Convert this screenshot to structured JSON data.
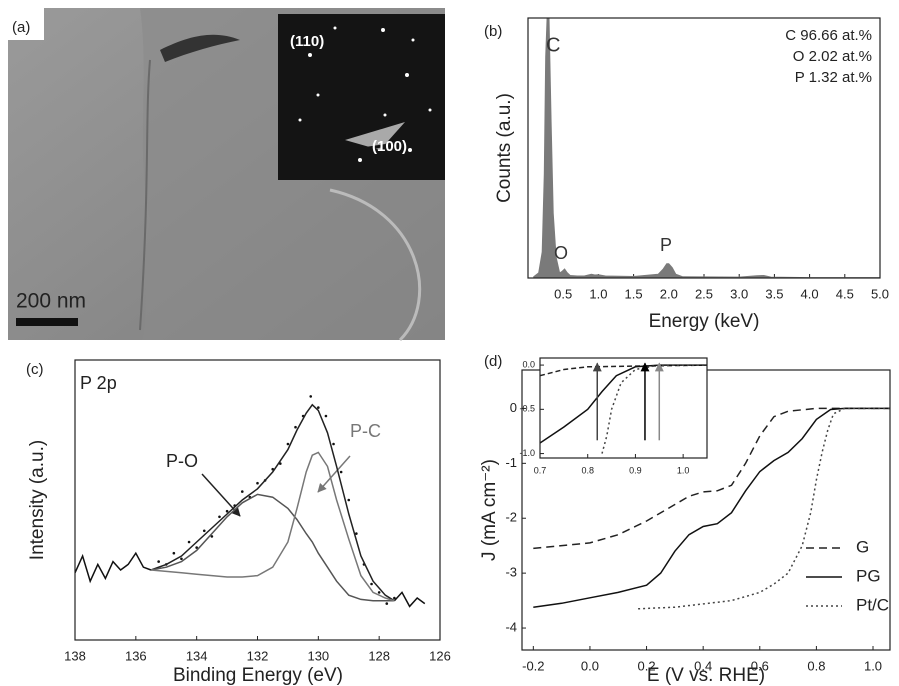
{
  "image_panel": {
    "label": "(a)",
    "scale_bar": "200 nm",
    "diffraction_spots": [
      "(110)",
      "(100)"
    ]
  },
  "chart_data": [
    {
      "type": "area",
      "label": "(b)",
      "xlabel": "Energy (keV)",
      "ylabel": "Counts (a.u.)",
      "xlim": [
        0,
        5
      ],
      "ylim": [
        0,
        100
      ],
      "xticks": [
        0.5,
        {
          "value": 1,
          "label": "1.0"
        },
        1.5,
        {
          "value": 2,
          "label": "2.0"
        },
        2.5,
        {
          "value": 3,
          "label": "3.0"
        },
        3.5,
        {
          "value": 4,
          "label": "4.0"
        },
        4.5,
        {
          "value": 5,
          "label": "5.0"
        }
      ],
      "annotations": [
        "C",
        "O",
        "P",
        "C 96.66 at.%",
        "O 2.02 at.%",
        "P 1.32 at.%"
      ],
      "series": [
        {
          "color": "#7a7a7a",
          "x": [
            0.08,
            0.15,
            0.2,
            0.23,
            0.25,
            0.27,
            0.3,
            0.33,
            0.36,
            0.4,
            0.45,
            0.48,
            0.52,
            0.56,
            0.6,
            0.7,
            0.8,
            0.9,
            0.95,
            1.0,
            1.1,
            1.5,
            1.85,
            1.92,
            1.97,
            2.0,
            2.05,
            2.1,
            2.2,
            3.0,
            3.25,
            3.35,
            3.45,
            4.0,
            5.0
          ],
          "values": [
            0.5,
            2,
            10,
            40,
            85,
            100,
            100,
            60,
            25,
            8,
            2,
            2.5,
            3.5,
            2,
            1,
            0.8,
            0.8,
            1.5,
            1.2,
            1.3,
            0.8,
            0.6,
            1.5,
            3.5,
            5.5,
            5.5,
            4,
            1.5,
            0.5,
            0.4,
            0.9,
            1,
            0.4,
            0.2,
            0.2
          ]
        }
      ]
    },
    {
      "type": "line",
      "label": "(c)",
      "xlabel": "Binding Energy (eV)",
      "ylabel": "Intensity (a.u.)",
      "xlim": [
        138,
        126
      ],
      "ylim": [
        0,
        100
      ],
      "xticks": [
        138,
        136,
        134,
        132,
        130,
        128,
        126
      ],
      "annotations": [
        "P 2p",
        "P-O",
        "P-C"
      ],
      "series": [
        {
          "color": "#111",
          "x": [
            138,
            137.75,
            137.5,
            137.25,
            137,
            136.75,
            136.5,
            136.25,
            136,
            135.75,
            135.5,
            127.6,
            127.5,
            127.25,
            127,
            126.75,
            126.5
          ],
          "values": [
            24,
            30,
            21,
            27,
            22,
            28,
            25,
            27,
            31,
            26,
            25,
            null,
            14,
            17,
            12,
            15,
            13
          ]
        },
        {
          "color": "#111",
          "marker": true,
          "x": [
            135.25,
            135,
            134.75,
            134.5,
            134.25,
            134,
            133.75,
            133.5,
            133.25,
            133,
            132.75,
            132.5,
            132.25,
            132,
            131.75,
            131.5,
            131.25,
            131,
            130.75,
            130.5,
            130.25,
            130,
            129.75,
            129.5,
            129.25,
            129,
            128.75,
            128.5,
            128.25,
            128,
            127.75,
            127.5
          ],
          "values": [
            28,
            27,
            31,
            29,
            35,
            33,
            39,
            37,
            44,
            46,
            48,
            53,
            51,
            56,
            57,
            61,
            63,
            70,
            76,
            80,
            87,
            83,
            80,
            70,
            60,
            50,
            38,
            27,
            20,
            17,
            13,
            15
          ]
        },
        {
          "color": "#222",
          "x": [
            135.5,
            135,
            134.5,
            134,
            133.5,
            133,
            132.5,
            132,
            131.5,
            131,
            130.7,
            130.4,
            130.2,
            130,
            129.7,
            129.4,
            129,
            128.6,
            128.2,
            127.8,
            127.5
          ],
          "values": [
            25,
            27,
            30,
            35,
            40,
            45,
            50,
            54,
            60,
            68,
            75,
            81,
            84,
            82,
            74,
            62,
            45,
            30,
            21,
            16,
            14
          ]
        },
        {
          "color": "#555",
          "x": [
            135.5,
            135,
            134.5,
            134,
            133.5,
            133,
            132.5,
            132,
            131.5,
            131,
            130.7,
            130.4,
            130.2,
            130,
            129.7,
            129.4,
            129,
            128.6,
            128.2,
            127.8,
            127.5
          ],
          "values": [
            25,
            26,
            28,
            32,
            38,
            44,
            49,
            52,
            51,
            47,
            43,
            38,
            35,
            31,
            26,
            21,
            16,
            14.5,
            14,
            14,
            14
          ]
        },
        {
          "color": "#777",
          "x": [
            135.5,
            135,
            134.5,
            134,
            133.5,
            133,
            132.5,
            132,
            131.5,
            131,
            130.7,
            130.4,
            130.2,
            130,
            129.7,
            129.4,
            129,
            128.6,
            128.2,
            127.8,
            127.5
          ],
          "values": [
            25,
            24.5,
            24,
            23.5,
            23,
            22.5,
            22.5,
            23,
            26,
            35,
            47,
            60,
            66,
            67,
            62,
            50,
            36,
            23,
            17,
            15,
            14
          ]
        }
      ]
    },
    {
      "type": "line",
      "label": "(d)",
      "xlabel": "E (V vs. RHE)",
      "ylabel": "J (mA cm⁻²)",
      "xlim": [
        -0.24,
        1.06
      ],
      "ylim": [
        -4.4,
        0.7
      ],
      "legend": "lower right",
      "xticks": [
        -0.2,
        {
          "value": 0,
          "label": "0.0"
        },
        0.2,
        0.4,
        0.6,
        0.8,
        {
          "value": 1,
          "label": "1.0"
        }
      ],
      "yticks": [
        0,
        -1,
        -2,
        -3,
        -4
      ],
      "series": [
        {
          "name": "G",
          "color": "#222",
          "dash": "8 5",
          "x": [
            -0.2,
            0,
            0.1,
            0.2,
            0.3,
            0.35,
            0.4,
            0.45,
            0.5,
            0.55,
            0.6,
            0.65,
            0.7,
            0.8,
            1.06
          ],
          "values": [
            -2.55,
            -2.45,
            -2.3,
            -2.05,
            -1.75,
            -1.6,
            -1.52,
            -1.5,
            -1.4,
            -1.0,
            -0.5,
            -0.15,
            -0.05,
            0,
            0
          ]
        },
        {
          "name": "PG",
          "color": "#111",
          "x": [
            -0.2,
            -0.1,
            0,
            0.1,
            0.2,
            0.25,
            0.3,
            0.35,
            0.4,
            0.45,
            0.5,
            0.55,
            0.6,
            0.65,
            0.7,
            0.75,
            0.8,
            0.85,
            0.9,
            1.06
          ],
          "values": [
            -3.62,
            -3.55,
            -3.45,
            -3.35,
            -3.22,
            -3.0,
            -2.6,
            -2.3,
            -2.15,
            -2.1,
            -1.9,
            -1.5,
            -1.15,
            -0.95,
            -0.8,
            -0.55,
            -0.2,
            -0.02,
            0,
            0
          ]
        },
        {
          "name": "Pt/C",
          "color": "#444",
          "dash": "2 3",
          "x": [
            0.17,
            0.3,
            0.5,
            0.6,
            0.65,
            0.7,
            0.75,
            0.78,
            0.8,
            0.82,
            0.84,
            0.86,
            0.9,
            1.06
          ],
          "values": [
            -3.65,
            -3.62,
            -3.5,
            -3.35,
            -3.2,
            -3.0,
            -2.5,
            -1.9,
            -1.3,
            -0.8,
            -0.4,
            -0.1,
            0,
            0
          ]
        }
      ]
    },
    {
      "type": "line",
      "xlim": [
        0.7,
        1.05
      ],
      "ylim": [
        -1.05,
        0.08
      ],
      "xticks": [
        0.7,
        0.8,
        0.9,
        {
          "value": 1,
          "label": "1.0"
        }
      ],
      "yticks": [
        {
          "value": 0,
          "label": "0.0"
        },
        -0.5,
        {
          "value": -1,
          "label": "-1.0"
        }
      ],
      "markers": {
        "x": [
          0.82,
          0.92,
          0.95
        ],
        "colors": [
          "#444",
          "#000",
          "#888"
        ]
      },
      "series": [
        {
          "color": "#222",
          "dash": "5 3",
          "x": [
            0.7,
            0.75,
            0.8,
            1.05
          ],
          "values": [
            -0.12,
            -0.05,
            -0.02,
            0
          ]
        },
        {
          "color": "#111",
          "x": [
            0.7,
            0.75,
            0.8,
            0.83,
            0.86,
            0.9,
            0.95,
            1.05
          ],
          "values": [
            -0.88,
            -0.7,
            -0.5,
            -0.3,
            -0.12,
            -0.02,
            0,
            0
          ]
        },
        {
          "color": "#444",
          "dash": "2 3",
          "x": [
            0.83,
            0.84,
            0.85,
            0.87,
            0.9,
            0.95,
            1.05
          ],
          "values": [
            -1.0,
            -0.8,
            -0.5,
            -0.2,
            -0.05,
            0,
            0
          ]
        }
      ]
    }
  ]
}
